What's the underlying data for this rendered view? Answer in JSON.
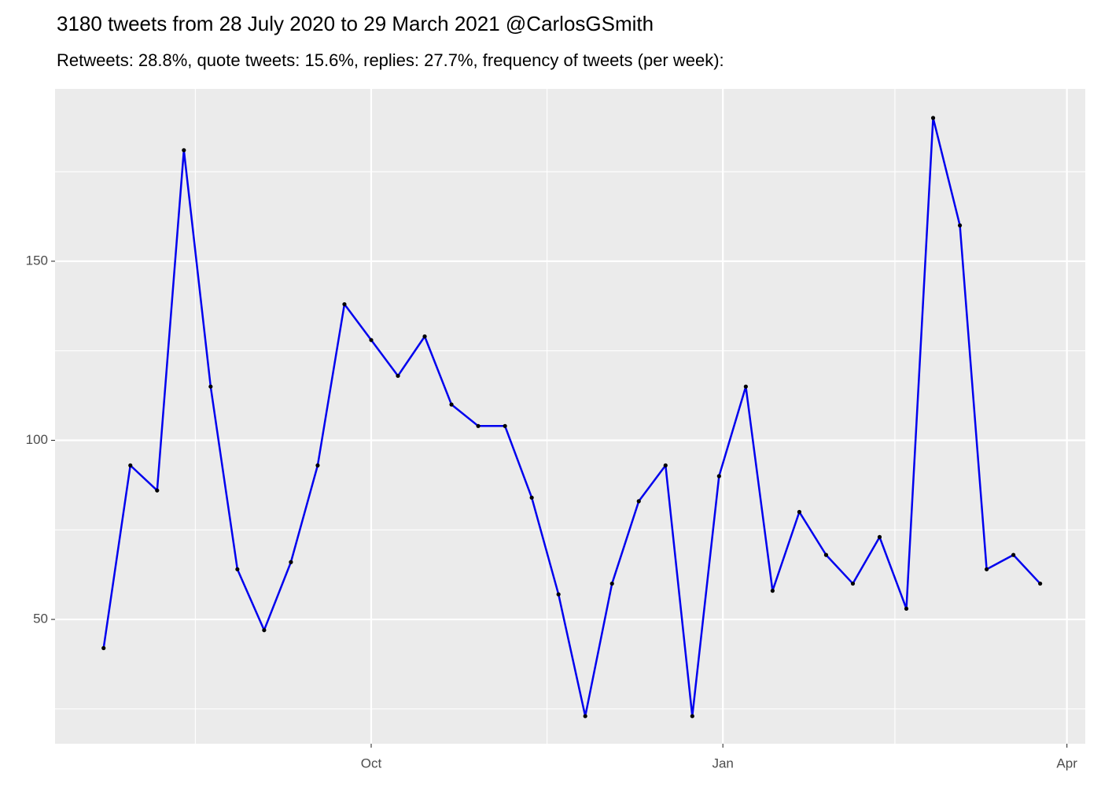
{
  "chart_data": {
    "type": "line",
    "title": "3180 tweets from 28 July 2020 to 29 March 2021 @CarlosGSmith",
    "subtitle": "Retweets: 28.8%, quote tweets: 15.6%, replies: 27.7%, frequency of tweets (per week):",
    "x": [
      -5,
      2,
      9,
      16,
      23,
      30,
      37,
      44,
      51,
      58,
      65,
      72,
      79,
      86,
      93,
      100,
      107,
      114,
      121,
      128,
      135,
      142,
      149,
      156,
      163,
      170,
      177,
      184,
      191,
      198,
      205,
      212,
      219,
      226,
      233,
      240
    ],
    "series": [
      {
        "color": "#0000ee",
        "values": [
          42,
          93,
          86,
          181,
          115,
          64,
          47,
          66,
          93,
          138,
          128,
          118,
          129,
          110,
          104,
          104,
          84,
          57,
          23,
          60,
          83,
          93,
          23,
          90,
          115,
          58,
          80,
          68,
          60,
          73,
          53,
          190,
          160,
          64,
          68,
          60
        ]
      }
    ],
    "xlim": [
      -17.7,
      251.8
    ],
    "xticks": [
      {
        "value": 65,
        "label": "Oct"
      },
      {
        "value": 157,
        "label": "Jan"
      },
      {
        "value": 247,
        "label": "Apr"
      }
    ],
    "ylim": [
      15.3,
      198.1
    ],
    "yticks": [
      50,
      100,
      150
    ],
    "grid": true
  }
}
